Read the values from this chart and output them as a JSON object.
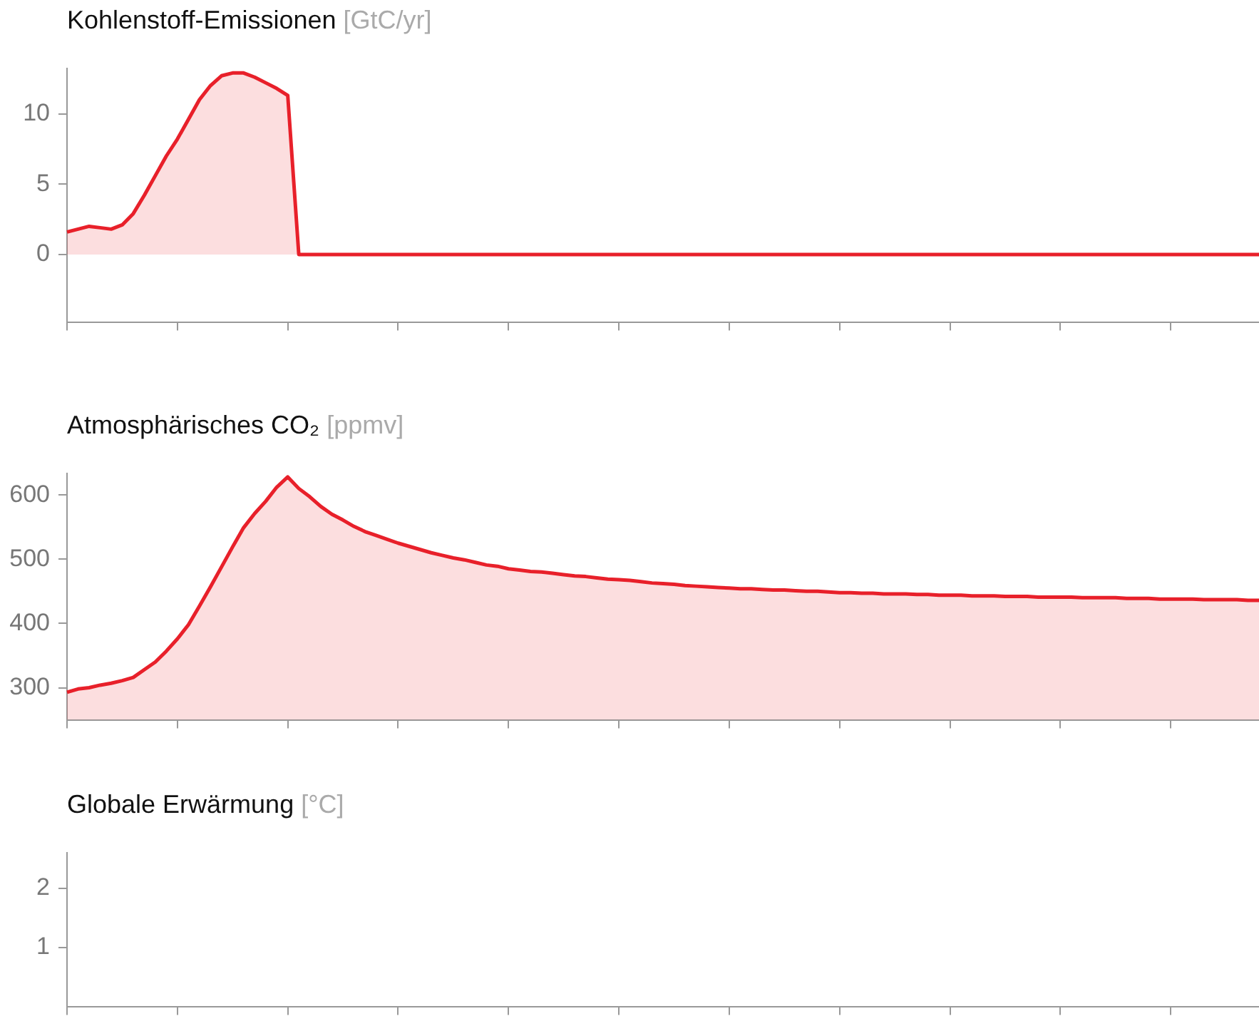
{
  "chart_data": [
    {
      "type": "area",
      "title": "Kohlenstoff-Emissionen",
      "subtitle": "[GtC/yr]",
      "categories": [
        null,
        null,
        null,
        null,
        null,
        null,
        null,
        null,
        null,
        null,
        null,
        null,
        null,
        null,
        null,
        null,
        null,
        null,
        null,
        null,
        null,
        null,
        null,
        null,
        null,
        null,
        null,
        null,
        null,
        null,
        null,
        null,
        null,
        null,
        null,
        null,
        null,
        null,
        null,
        null,
        null,
        null,
        null,
        null,
        null,
        null,
        null,
        null,
        null,
        null,
        null,
        null,
        null,
        null,
        null,
        null,
        null,
        null,
        null,
        null,
        null,
        null,
        null,
        null,
        null,
        null,
        null,
        null,
        null,
        null,
        null,
        null,
        null,
        null,
        null,
        null,
        null,
        null,
        null,
        null,
        null,
        null,
        null,
        null,
        null,
        null,
        null,
        null,
        null,
        null,
        null,
        null,
        null,
        null,
        null,
        null,
        null,
        null,
        null,
        null,
        null,
        null,
        null,
        null,
        null,
        null,
        null,
        null,
        null
      ],
      "color": "#e8202a",
      "values": [
        1.6,
        1.8,
        2.0,
        1.9,
        1.8,
        2.1,
        2.9,
        4.2,
        5.6,
        7.0,
        8.2,
        9.6,
        11.0,
        12.0,
        12.7,
        12.9,
        12.9,
        12.6,
        12.2,
        11.8,
        11.3,
        0,
        0,
        0,
        0,
        0,
        0,
        0,
        0,
        0,
        0,
        0,
        0,
        0,
        0,
        0,
        0,
        0,
        0,
        0,
        0,
        0,
        0,
        0,
        0,
        0,
        0,
        0,
        0,
        0,
        0,
        0,
        0,
        0,
        0,
        0,
        0,
        0,
        0,
        0,
        0,
        0,
        0,
        0,
        0,
        0,
        0,
        0,
        0,
        0,
        0,
        0,
        0,
        0,
        0,
        0,
        0,
        0,
        0,
        0,
        0,
        0,
        0,
        0,
        0,
        0,
        0,
        0,
        0,
        0,
        0,
        0,
        0,
        0,
        0,
        0,
        0,
        0,
        0,
        0,
        0,
        0,
        0,
        0,
        0,
        0,
        0,
        0,
        0
      ],
      "ylim": [
        -4.8,
        13.2
      ],
      "yticks": [
        0,
        5,
        10
      ]
    },
    {
      "type": "area",
      "title": "Atmosphärisches CO₂",
      "subtitle": "[ppmv]",
      "categories": [
        null,
        null,
        null,
        null,
        null,
        null,
        null,
        null,
        null,
        null,
        null,
        null,
        null,
        null,
        null,
        null,
        null,
        null,
        null,
        null,
        null,
        null,
        null,
        null,
        null,
        null,
        null,
        null,
        null,
        null,
        null,
        null,
        null,
        null,
        null,
        null,
        null,
        null,
        null,
        null,
        null,
        null,
        null,
        null,
        null,
        null,
        null,
        null,
        null,
        null,
        null,
        null,
        null,
        null,
        null,
        null,
        null,
        null,
        null,
        null,
        null,
        null,
        null,
        null,
        null,
        null,
        null,
        null,
        null,
        null,
        null,
        null,
        null,
        null,
        null,
        null,
        null,
        null,
        null,
        null,
        null,
        null,
        null,
        null,
        null,
        null,
        null,
        null,
        null,
        null,
        null,
        null,
        null,
        null,
        null,
        null,
        null,
        null,
        null,
        null,
        null,
        null,
        null,
        null,
        null,
        null,
        null,
        null,
        null
      ],
      "color": "#e8202a",
      "values": [
        293,
        298,
        300,
        304,
        307,
        311,
        316,
        328,
        340,
        357,
        376,
        398,
        427,
        457,
        488,
        519,
        549,
        571,
        590,
        612,
        628,
        610,
        597,
        582,
        570,
        561,
        551,
        543,
        537,
        531,
        525,
        520,
        515,
        510,
        506,
        502,
        499,
        495,
        491,
        489,
        485,
        483,
        481,
        480,
        478,
        476,
        474,
        473,
        471,
        469,
        468,
        467,
        465,
        463,
        462,
        461,
        459,
        458,
        457,
        456,
        455,
        454,
        454,
        453,
        452,
        452,
        451,
        450,
        450,
        449,
        448,
        448,
        447,
        447,
        446,
        446,
        446,
        445,
        445,
        444,
        444,
        444,
        443,
        443,
        443,
        442,
        442,
        442,
        441,
        441,
        441,
        441,
        440,
        440,
        440,
        440,
        439,
        439,
        439,
        438,
        438,
        438,
        438,
        437,
        437,
        437,
        437,
        436,
        436
      ],
      "ylim": [
        250,
        633
      ],
      "yticks": [
        300,
        400,
        500,
        600
      ]
    },
    {
      "type": "line",
      "title": "Globale Erwärmung",
      "subtitle": "[°C]",
      "categories": [
        null,
        null,
        null,
        null,
        null,
        null,
        null,
        null,
        null,
        null,
        null,
        null,
        null,
        null,
        null,
        null,
        null,
        null,
        null,
        null,
        null,
        null,
        null,
        null,
        null,
        null,
        null,
        null,
        null,
        null,
        null,
        null,
        null,
        null,
        null,
        null,
        null,
        null,
        null,
        null,
        null,
        null,
        null,
        null,
        null,
        null,
        null,
        null,
        null,
        null,
        null,
        null,
        null,
        null,
        null,
        null,
        null,
        null,
        null,
        null,
        null,
        null,
        null,
        null,
        null,
        null,
        null,
        null,
        null,
        null,
        null,
        null,
        null,
        null,
        null,
        null,
        null,
        null,
        null,
        null,
        null,
        null,
        null,
        null,
        null,
        null,
        null,
        null,
        null,
        null,
        null,
        null,
        null,
        null,
        null,
        null,
        null,
        null,
        null,
        null,
        null,
        null,
        null,
        null,
        null,
        null,
        null,
        null,
        null
      ],
      "values": [
        null,
        null,
        null,
        null,
        null,
        null,
        null,
        null,
        null,
        null,
        null,
        null,
        null,
        null,
        null,
        null,
        null,
        null,
        null,
        null,
        null,
        null,
        null,
        null,
        null,
        null,
        null,
        null,
        null,
        null,
        null,
        null,
        null,
        null,
        null,
        null,
        null,
        null,
        null,
        null,
        null,
        null,
        null,
        null,
        null,
        null,
        null,
        null,
        null,
        null,
        null,
        null,
        null,
        null,
        null,
        null,
        null,
        null,
        null,
        null,
        null,
        null,
        null,
        null,
        null,
        null,
        null,
        null,
        null,
        null,
        null,
        null,
        null,
        null,
        null,
        null,
        null,
        null,
        null,
        null,
        null,
        null,
        null,
        null,
        null,
        null,
        null,
        null,
        null,
        null,
        null,
        null,
        null,
        null,
        null,
        null,
        null,
        null,
        null,
        null,
        null,
        null,
        null,
        null,
        null,
        null,
        null,
        null,
        null
      ],
      "ylim": [
        0,
        2.6
      ],
      "yticks": [
        1,
        2
      ]
    }
  ]
}
